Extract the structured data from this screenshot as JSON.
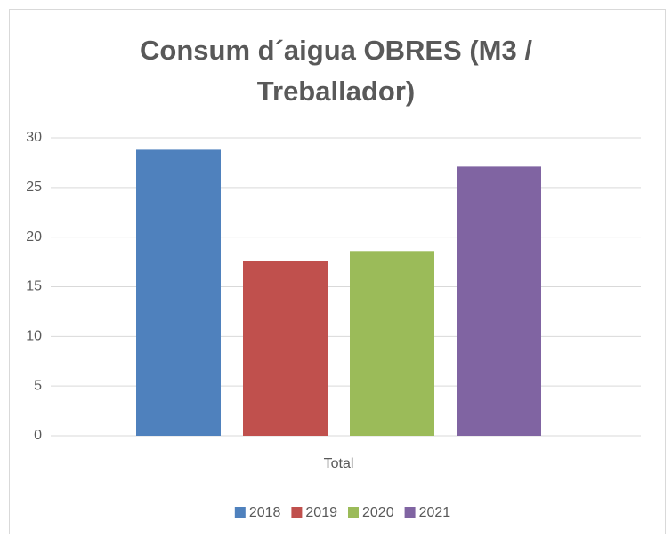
{
  "chart_data": {
    "type": "bar",
    "title": "Consum d´aigua OBRES (M3 / Treballador)",
    "categories": [
      "Total"
    ],
    "series": [
      {
        "name": "2018",
        "color": "#4f81bd",
        "values": [
          28.8
        ]
      },
      {
        "name": "2019",
        "color": "#c0504d",
        "values": [
          17.6
        ]
      },
      {
        "name": "2020",
        "color": "#9bbb59",
        "values": [
          18.6
        ]
      },
      {
        "name": "2021",
        "color": "#8064a2",
        "values": [
          27.1
        ]
      }
    ],
    "ylim": [
      0,
      30
    ],
    "yticks": [
      0,
      5,
      10,
      15,
      20,
      25,
      30
    ],
    "grid": true,
    "legend": "bottom"
  }
}
